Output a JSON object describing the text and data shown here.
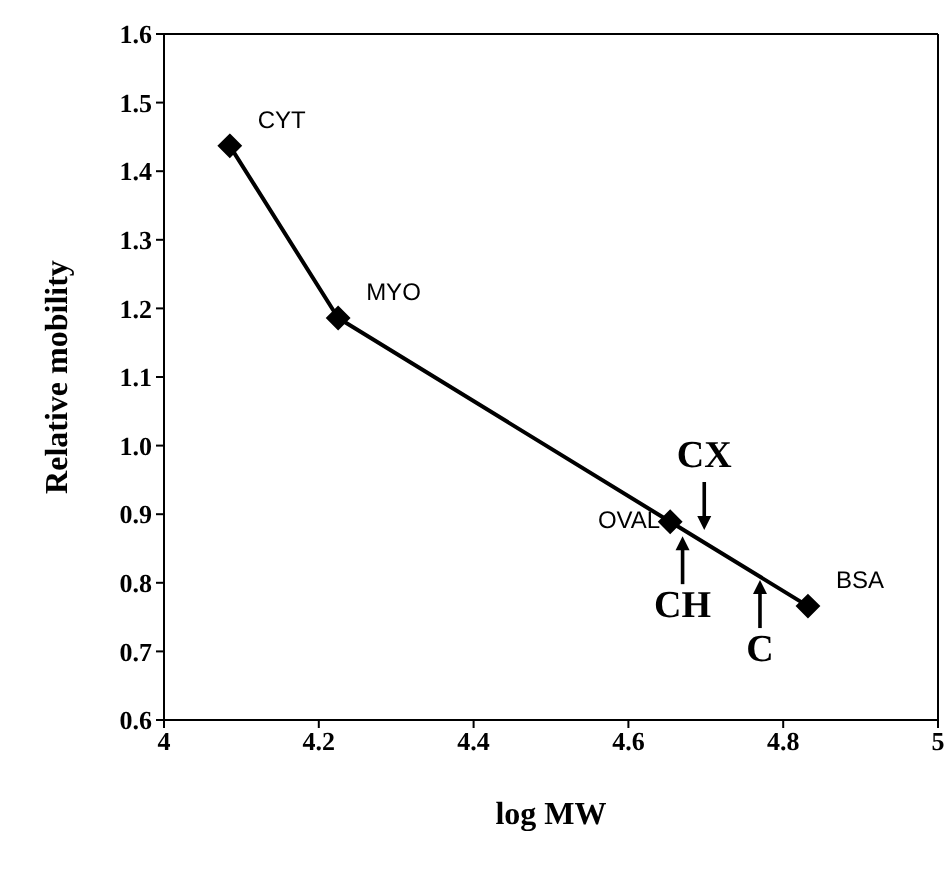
{
  "chart_data": {
    "type": "line",
    "xlabel": "log MW",
    "ylabel": "Relative mobility",
    "x": [
      4.085,
      4.225,
      4.654,
      4.832
    ],
    "series": [
      {
        "color": "#000000",
        "values": [
          1.437,
          1.186,
          0.889,
          0.766
        ]
      }
    ],
    "xlim": [
      4,
      5
    ],
    "xticks": [
      4,
      4.2,
      4.4,
      4.6,
      4.8,
      5
    ],
    "ylim": [
      0.6,
      1.6
    ],
    "yticks": [
      0.6,
      0.7,
      0.8,
      0.9,
      {
        "value": 1.0,
        "label": "1.0"
      },
      1.1,
      1.2,
      1.3,
      1.4,
      1.5,
      1.6
    ],
    "marker": "diamond",
    "line_style": "solid",
    "annotations": [
      {
        "text": "CYT",
        "x": 4.085,
        "y": 1.437
      },
      {
        "text": "MYO",
        "x": 4.225,
        "y": 1.186
      },
      {
        "text": "OVAL",
        "x": 4.654,
        "y": 0.889
      },
      {
        "text": "BSA",
        "x": 4.832,
        "y": 0.766
      },
      {
        "text": "CX",
        "x": 4.698,
        "y": 0.877
      },
      {
        "text": "CH",
        "x": 4.67,
        "y": 0.868
      },
      {
        "text": "C",
        "x": 4.77,
        "y": 0.804
      }
    ]
  }
}
